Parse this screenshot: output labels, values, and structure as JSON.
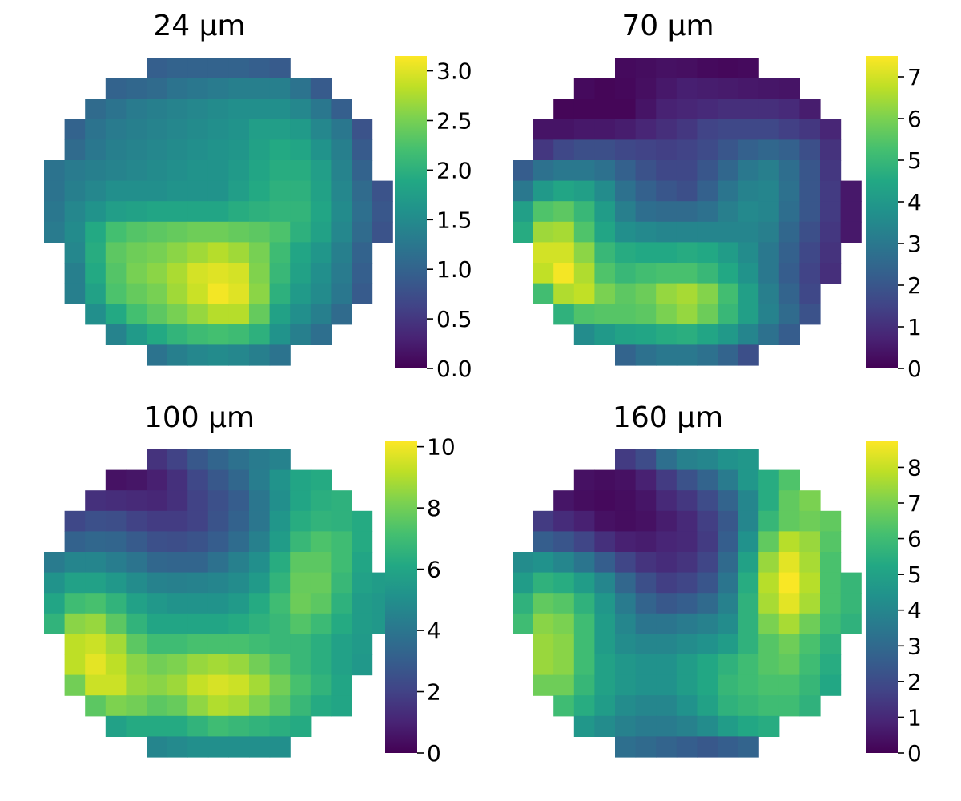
{
  "figure": {
    "panels": [
      {
        "title": "24 μm"
      },
      {
        "title": "70 μm"
      },
      {
        "title": "100 μm"
      },
      {
        "title": "160 μm"
      }
    ]
  },
  "chart_data": [
    {
      "type": "heatmap",
      "title": "24 μm",
      "colormap": "viridis",
      "vmin": 0,
      "vmax": 3.15,
      "colorbar_ticks": [
        "0.0",
        "0.5",
        "1.0",
        "1.5",
        "2.0",
        "2.5",
        "3.0"
      ],
      "colorbar_tick_values": [
        0,
        0.5,
        1,
        1.5,
        2,
        2.5,
        3
      ],
      "grid": [
        [
          null,
          null,
          null,
          null,
          null,
          0.95,
          1.0,
          1.0,
          1.0,
          1.0,
          0.95,
          0.9,
          null,
          null,
          null,
          null,
          null
        ],
        [
          null,
          null,
          null,
          1.0,
          1.05,
          1.1,
          1.2,
          1.25,
          1.3,
          1.35,
          1.35,
          1.35,
          1.2,
          0.9,
          null,
          null,
          null
        ],
        [
          null,
          null,
          1.1,
          1.2,
          1.3,
          1.35,
          1.4,
          1.45,
          1.5,
          1.55,
          1.55,
          1.55,
          1.45,
          1.25,
          0.95,
          null,
          null
        ],
        [
          null,
          1.0,
          1.2,
          1.3,
          1.35,
          1.4,
          1.45,
          1.5,
          1.55,
          1.6,
          1.75,
          1.75,
          1.7,
          1.45,
          1.25,
          0.8,
          null
        ],
        [
          null,
          1.1,
          1.25,
          1.35,
          1.4,
          1.45,
          1.5,
          1.55,
          1.6,
          1.65,
          1.8,
          1.9,
          1.85,
          1.6,
          1.35,
          0.9,
          null
        ],
        [
          1.2,
          1.3,
          1.35,
          1.4,
          1.45,
          1.5,
          1.55,
          1.6,
          1.6,
          1.7,
          1.85,
          1.95,
          1.95,
          1.75,
          1.4,
          1.0,
          null
        ],
        [
          1.2,
          1.35,
          1.45,
          1.55,
          1.55,
          1.55,
          1.6,
          1.6,
          1.6,
          1.75,
          1.9,
          2.0,
          2.0,
          1.8,
          1.45,
          1.1,
          0.8
        ],
        [
          1.25,
          1.45,
          1.6,
          1.75,
          1.8,
          1.85,
          1.85,
          1.85,
          1.85,
          1.95,
          2.0,
          2.05,
          2.05,
          1.85,
          1.5,
          1.15,
          0.85
        ],
        [
          1.3,
          1.5,
          1.9,
          2.2,
          2.3,
          2.35,
          2.4,
          2.45,
          2.45,
          2.4,
          2.35,
          2.25,
          2.0,
          1.8,
          1.45,
          1.1,
          0.8
        ],
        [
          null,
          1.45,
          1.95,
          2.35,
          2.45,
          2.5,
          2.6,
          2.7,
          2.8,
          2.7,
          2.5,
          2.15,
          1.85,
          1.65,
          1.35,
          1.0,
          null
        ],
        [
          null,
          1.35,
          1.9,
          2.3,
          2.5,
          2.6,
          2.75,
          2.95,
          3.0,
          2.95,
          2.55,
          2.1,
          1.8,
          1.55,
          1.3,
          0.95,
          null
        ],
        [
          null,
          1.35,
          1.8,
          2.25,
          2.4,
          2.5,
          2.7,
          2.9,
          3.1,
          3.0,
          2.6,
          2.0,
          1.7,
          1.5,
          1.25,
          0.9,
          null
        ],
        [
          null,
          null,
          1.55,
          1.9,
          2.2,
          2.35,
          2.5,
          2.65,
          2.8,
          2.8,
          2.4,
          1.8,
          1.55,
          1.35,
          1.1,
          null,
          null
        ],
        [
          null,
          null,
          null,
          1.4,
          1.7,
          1.9,
          2.05,
          2.15,
          2.2,
          2.15,
          2.0,
          1.6,
          1.35,
          1.15,
          null,
          null,
          null
        ],
        [
          null,
          null,
          null,
          null,
          null,
          1.2,
          1.35,
          1.45,
          1.5,
          1.45,
          1.35,
          1.2,
          null,
          null,
          null,
          null,
          null
        ]
      ]
    },
    {
      "type": "heatmap",
      "title": "70 μm",
      "colormap": "viridis",
      "vmin": 0,
      "vmax": 7.5,
      "colorbar_ticks": [
        "0",
        "1",
        "2",
        "3",
        "4",
        "5",
        "6",
        "7"
      ],
      "colorbar_tick_values": [
        0,
        1,
        2,
        3,
        4,
        5,
        6,
        7
      ],
      "grid": [
        [
          null,
          null,
          null,
          null,
          null,
          0.2,
          0.25,
          0.35,
          0.3,
          0.2,
          0.15,
          0.2,
          null,
          null,
          null,
          null,
          null
        ],
        [
          null,
          null,
          null,
          0.2,
          0.1,
          0.15,
          0.3,
          0.5,
          0.65,
          0.6,
          0.55,
          0.5,
          0.45,
          0.4,
          null,
          null,
          null
        ],
        [
          null,
          null,
          0.1,
          0.1,
          0.1,
          0.1,
          0.4,
          0.7,
          0.8,
          0.9,
          1.0,
          1.0,
          1.0,
          0.9,
          0.6,
          null,
          null
        ],
        [
          null,
          0.4,
          0.4,
          0.5,
          0.5,
          0.6,
          0.8,
          1.0,
          1.2,
          1.5,
          1.6,
          1.6,
          1.6,
          1.4,
          1.2,
          0.8,
          null
        ],
        [
          null,
          1.2,
          1.6,
          1.8,
          1.8,
          1.6,
          1.5,
          1.4,
          1.5,
          1.7,
          2.0,
          2.3,
          2.5,
          2.3,
          1.8,
          1.1,
          null
        ],
        [
          2.2,
          2.8,
          3.0,
          3.0,
          2.8,
          2.3,
          1.9,
          1.6,
          1.6,
          2.0,
          2.5,
          3.0,
          3.2,
          2.7,
          2.0,
          1.2,
          null
        ],
        [
          3.0,
          4.0,
          4.4,
          4.2,
          3.6,
          2.8,
          2.3,
          2.0,
          1.8,
          2.3,
          2.9,
          3.3,
          3.4,
          2.8,
          2.0,
          1.3,
          0.5
        ],
        [
          4.2,
          5.4,
          5.6,
          5.0,
          4.1,
          3.2,
          2.7,
          2.6,
          2.6,
          2.8,
          3.2,
          3.5,
          3.4,
          2.7,
          2.0,
          1.3,
          0.5
        ],
        [
          4.6,
          6.4,
          6.5,
          5.4,
          4.4,
          3.7,
          3.5,
          3.4,
          3.4,
          3.4,
          3.4,
          3.4,
          3.2,
          2.5,
          1.8,
          1.2,
          0.5
        ],
        [
          null,
          7.0,
          7.0,
          6.2,
          5.0,
          4.6,
          4.5,
          4.5,
          4.6,
          4.5,
          4.1,
          3.6,
          3.0,
          2.3,
          1.6,
          1.1,
          null
        ],
        [
          null,
          6.8,
          7.4,
          6.6,
          5.4,
          5.0,
          5.2,
          5.3,
          5.3,
          5.0,
          4.5,
          3.8,
          3.0,
          2.2,
          1.5,
          1.0,
          null
        ],
        [
          null,
          5.2,
          6.6,
          6.8,
          6.0,
          5.6,
          5.8,
          6.3,
          6.5,
          6.1,
          5.2,
          4.2,
          3.2,
          2.4,
          1.6,
          null,
          null
        ],
        [
          null,
          null,
          4.8,
          5.4,
          5.5,
          5.5,
          5.6,
          6.0,
          6.3,
          5.8,
          5.0,
          4.2,
          3.3,
          2.6,
          1.9,
          null,
          null
        ],
        [
          null,
          null,
          null,
          3.6,
          4.0,
          4.3,
          4.4,
          4.6,
          4.7,
          4.4,
          4.0,
          3.4,
          2.8,
          2.2,
          null,
          null,
          null
        ],
        [
          null,
          null,
          null,
          null,
          null,
          2.4,
          2.8,
          3.0,
          3.0,
          2.8,
          2.4,
          1.8,
          null,
          null,
          null,
          null,
          null
        ]
      ]
    },
    {
      "type": "heatmap",
      "title": "100 μm",
      "colormap": "viridis",
      "vmin": 0,
      "vmax": 10.2,
      "colorbar_ticks": [
        "0",
        "2",
        "4",
        "6",
        "8",
        "10"
      ],
      "colorbar_tick_values": [
        0,
        2,
        4,
        6,
        8,
        10
      ],
      "grid": [
        [
          null,
          null,
          null,
          null,
          null,
          1.5,
          2.0,
          2.8,
          3.3,
          3.8,
          4.2,
          4.5,
          null,
          null,
          null,
          null,
          null
        ],
        [
          null,
          null,
          null,
          0.5,
          0.6,
          0.9,
          1.4,
          2.2,
          2.8,
          3.4,
          4.3,
          5.2,
          6.0,
          6.2,
          null,
          null,
          null
        ],
        [
          null,
          null,
          1.4,
          1.3,
          1.2,
          1.1,
          1.4,
          2.0,
          2.5,
          3.0,
          4.0,
          5.0,
          6.0,
          6.4,
          6.5,
          null,
          null
        ],
        [
          null,
          2.2,
          2.5,
          2.4,
          2.0,
          1.8,
          1.8,
          2.0,
          2.6,
          3.2,
          4.0,
          5.3,
          6.3,
          6.6,
          6.5,
          6.2,
          null
        ],
        [
          null,
          3.2,
          3.4,
          3.3,
          2.9,
          2.5,
          2.4,
          2.6,
          3.0,
          3.6,
          4.4,
          5.6,
          6.8,
          7.3,
          7.0,
          6.2,
          null
        ],
        [
          4.2,
          4.6,
          4.6,
          4.3,
          3.9,
          3.4,
          3.3,
          3.3,
          3.8,
          4.4,
          5.0,
          6.3,
          7.6,
          7.6,
          7.0,
          6.0,
          null
        ],
        [
          5.2,
          5.8,
          5.8,
          5.4,
          4.9,
          4.5,
          4.4,
          4.5,
          4.6,
          4.9,
          5.5,
          6.6,
          7.8,
          7.8,
          6.8,
          5.8,
          5.6
        ],
        [
          6.0,
          7.0,
          7.2,
          6.6,
          5.8,
          5.4,
          5.2,
          5.2,
          5.2,
          5.5,
          6.2,
          7.0,
          7.9,
          7.6,
          6.5,
          5.6,
          5.4
        ],
        [
          6.6,
          8.4,
          8.6,
          7.6,
          6.6,
          6.0,
          6.0,
          6.0,
          6.0,
          6.2,
          6.5,
          6.8,
          7.4,
          6.9,
          6.2,
          5.6,
          5.4
        ],
        [
          null,
          9.2,
          9.4,
          8.8,
          7.6,
          7.0,
          7.0,
          7.2,
          7.2,
          7.2,
          7.0,
          6.8,
          6.8,
          6.4,
          5.8,
          5.5,
          null
        ],
        [
          null,
          9.2,
          9.8,
          9.2,
          8.4,
          8.0,
          8.2,
          8.6,
          8.8,
          8.6,
          8.0,
          7.4,
          6.8,
          6.4,
          5.8,
          5.4,
          null
        ],
        [
          null,
          8.0,
          9.4,
          9.4,
          8.6,
          8.4,
          8.7,
          9.3,
          9.6,
          9.4,
          8.8,
          8.0,
          7.2,
          6.6,
          6.0,
          null,
          null
        ],
        [
          null,
          null,
          7.6,
          8.2,
          8.0,
          7.6,
          7.8,
          8.5,
          9.0,
          8.8,
          8.2,
          7.6,
          6.8,
          6.2,
          6.0,
          null,
          null
        ],
        [
          null,
          null,
          null,
          5.8,
          6.2,
          6.2,
          6.2,
          6.6,
          7.0,
          6.8,
          6.6,
          6.4,
          6.2,
          null,
          null,
          null,
          null
        ],
        [
          null,
          null,
          null,
          null,
          null,
          4.6,
          4.8,
          5.0,
          5.0,
          5.0,
          5.0,
          5.0,
          null,
          null,
          null,
          null,
          null
        ]
      ]
    },
    {
      "type": "heatmap",
      "title": "160 μm",
      "colormap": "viridis",
      "vmin": 0,
      "vmax": 8.75,
      "colorbar_ticks": [
        "0",
        "1",
        "2",
        "3",
        "4",
        "5",
        "6",
        "7",
        "8"
      ],
      "colorbar_tick_values": [
        0,
        1,
        2,
        3,
        4,
        5,
        6,
        7,
        8
      ],
      "grid": [
        [
          null,
          null,
          null,
          null,
          null,
          1.5,
          2.0,
          3.2,
          3.8,
          4.0,
          4.4,
          4.6,
          null,
          null,
          null,
          null,
          null
        ],
        [
          null,
          null,
          null,
          0.4,
          0.3,
          0.4,
          0.8,
          1.5,
          2.2,
          2.8,
          3.6,
          4.6,
          5.4,
          6.3,
          null,
          null,
          null
        ],
        [
          null,
          null,
          0.5,
          0.3,
          0.2,
          0.3,
          0.5,
          1.0,
          1.4,
          2.0,
          2.8,
          4.0,
          5.4,
          6.6,
          7.0,
          null,
          null
        ],
        [
          null,
          1.5,
          1.1,
          0.8,
          0.4,
          0.3,
          0.4,
          0.7,
          1.0,
          1.6,
          2.4,
          4.0,
          5.8,
          6.6,
          6.8,
          6.6,
          null
        ],
        [
          null,
          2.6,
          2.3,
          1.8,
          1.2,
          0.8,
          0.7,
          0.9,
          1.0,
          1.5,
          2.6,
          4.4,
          6.6,
          7.8,
          7.4,
          6.4,
          null
        ],
        [
          4.2,
          4.4,
          4.0,
          3.4,
          2.6,
          1.8,
          1.3,
          1.1,
          1.3,
          1.8,
          3.0,
          5.0,
          7.4,
          8.4,
          7.6,
          6.2,
          null
        ],
        [
          4.8,
          5.6,
          5.4,
          4.8,
          4.0,
          2.9,
          2.1,
          1.6,
          1.8,
          2.3,
          3.4,
          5.4,
          7.8,
          8.7,
          7.8,
          6.2,
          5.8
        ],
        [
          5.6,
          6.6,
          6.4,
          5.6,
          4.6,
          3.6,
          2.8,
          2.4,
          2.6,
          3.0,
          3.8,
          5.6,
          7.6,
          8.4,
          7.6,
          6.2,
          5.8
        ],
        [
          6.0,
          7.2,
          7.0,
          6.0,
          4.8,
          4.0,
          3.4,
          3.4,
          3.6,
          3.8,
          4.2,
          5.6,
          7.0,
          7.6,
          6.8,
          6.0,
          5.6
        ],
        [
          null,
          7.4,
          7.2,
          6.0,
          4.8,
          4.2,
          4.0,
          4.0,
          4.2,
          4.4,
          4.8,
          5.6,
          6.4,
          6.8,
          6.2,
          5.6,
          null
        ],
        [
          null,
          7.4,
          7.2,
          6.0,
          5.0,
          4.6,
          4.4,
          4.4,
          4.8,
          5.2,
          5.6,
          6.0,
          6.4,
          6.6,
          6.0,
          5.4,
          null
        ],
        [
          null,
          6.8,
          6.8,
          5.8,
          5.0,
          4.6,
          4.4,
          4.4,
          4.8,
          5.2,
          5.8,
          6.0,
          6.2,
          6.2,
          5.8,
          5.2,
          null
        ],
        [
          null,
          null,
          6.0,
          5.4,
          4.8,
          4.2,
          4.0,
          4.0,
          4.4,
          5.0,
          5.6,
          5.8,
          6.0,
          6.0,
          5.6,
          null,
          null
        ],
        [
          null,
          null,
          null,
          4.6,
          4.2,
          3.8,
          3.6,
          3.6,
          3.8,
          4.2,
          4.8,
          5.2,
          5.4,
          null,
          null,
          null,
          null
        ],
        [
          null,
          null,
          null,
          null,
          null,
          3.2,
          3.0,
          2.8,
          2.6,
          2.4,
          2.6,
          2.8,
          null,
          null,
          null,
          null,
          null
        ]
      ]
    }
  ]
}
